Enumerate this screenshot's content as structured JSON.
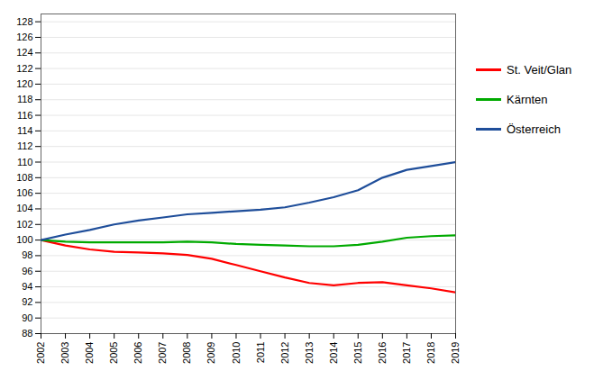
{
  "chart_data": {
    "type": "line",
    "x": [
      2002,
      2003,
      2004,
      2005,
      2006,
      2007,
      2008,
      2009,
      2010,
      2011,
      2012,
      2013,
      2014,
      2015,
      2016,
      2017,
      2018,
      2019
    ],
    "series": [
      {
        "name": "St. Veit/Glan",
        "color": "#ff0000",
        "values": [
          100.0,
          99.3,
          98.8,
          98.5,
          98.4,
          98.3,
          98.1,
          97.6,
          96.8,
          96.0,
          95.2,
          94.5,
          94.2,
          94.5,
          94.6,
          94.2,
          93.8,
          93.3
        ]
      },
      {
        "name": "Kärnten",
        "color": "#00aa00",
        "values": [
          100.0,
          99.8,
          99.7,
          99.7,
          99.7,
          99.7,
          99.8,
          99.7,
          99.5,
          99.4,
          99.3,
          99.2,
          99.2,
          99.4,
          99.8,
          100.3,
          100.5,
          100.6
        ]
      },
      {
        "name": "Österreich",
        "color": "#1f4e9a",
        "values": [
          100.0,
          100.7,
          101.3,
          102.0,
          102.5,
          102.9,
          103.3,
          103.5,
          103.7,
          103.9,
          104.2,
          104.8,
          105.5,
          106.4,
          108.0,
          109.0,
          109.5,
          110.0
        ]
      }
    ],
    "xlim": [
      2002,
      2019
    ],
    "xticks": [
      2002,
      2003,
      2004,
      2005,
      2006,
      2007,
      2008,
      2009,
      2010,
      2011,
      2012,
      2013,
      2014,
      2015,
      2016,
      2017,
      2018,
      2019
    ],
    "ylim": [
      88,
      129
    ],
    "yticks": [
      88,
      90,
      92,
      94,
      96,
      98,
      100,
      102,
      104,
      106,
      108,
      110,
      112,
      114,
      116,
      118,
      120,
      122,
      124,
      126,
      128
    ],
    "grid": true,
    "legend": "right"
  }
}
